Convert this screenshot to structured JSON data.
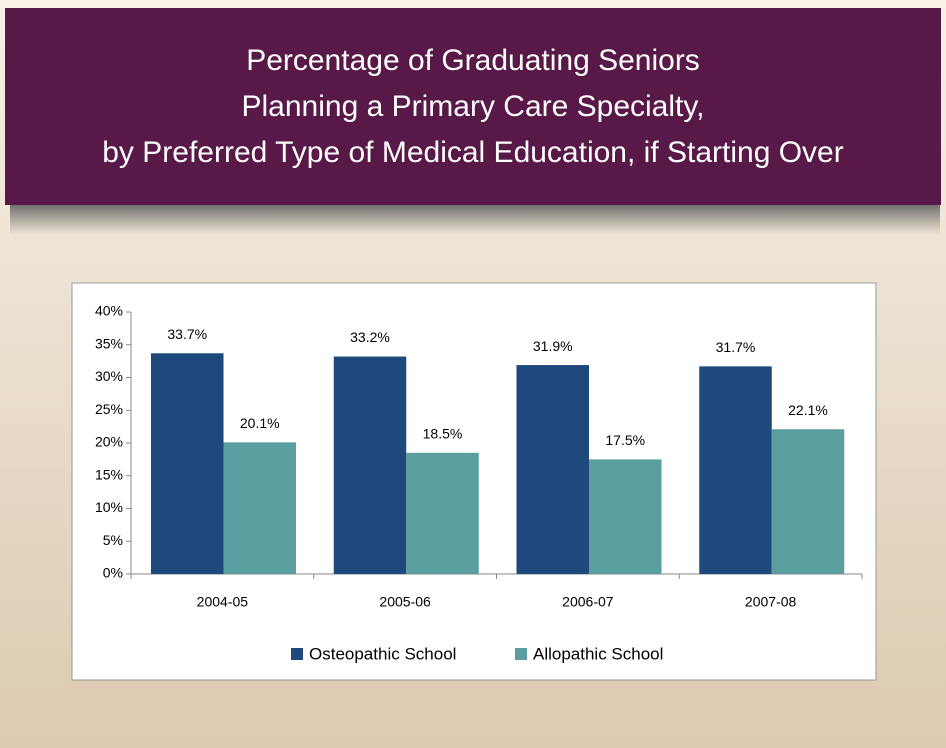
{
  "chart_data": {
    "type": "bar",
    "title": [
      "Percentage of Graduating Seniors",
      "Planning a Primary Care Specialty,",
      "by Preferred Type of Medical Education, if Starting Over"
    ],
    "categories": [
      "2004-05",
      "2005-06",
      "2006-07",
      "2007-08"
    ],
    "series": [
      {
        "name": "Osteopathic School",
        "color": "#1f497d",
        "values": [
          33.7,
          33.2,
          31.9,
          31.7
        ],
        "value_labels": [
          "33.7%",
          "33.2%",
          "31.9%",
          "31.7%"
        ]
      },
      {
        "name": "Allopathic School",
        "color": "#5b9ea0",
        "values": [
          20.1,
          18.5,
          17.5,
          22.1
        ],
        "value_labels": [
          "20.1%",
          "18.5%",
          "17.5%",
          "22.1%"
        ]
      }
    ],
    "ylim": [
      0,
      40
    ],
    "yticks": [
      {
        "value": 0,
        "label": "0%"
      },
      {
        "value": 5,
        "label": "5%"
      },
      {
        "value": 10,
        "label": "10%"
      },
      {
        "value": 15,
        "label": "15%"
      },
      {
        "value": 20,
        "label": "20%"
      },
      {
        "value": 25,
        "label": "25%"
      },
      {
        "value": 30,
        "label": "30%"
      },
      {
        "value": 35,
        "label": "35%"
      },
      {
        "value": 40,
        "label": "40%"
      }
    ],
    "legend": "bottom"
  }
}
